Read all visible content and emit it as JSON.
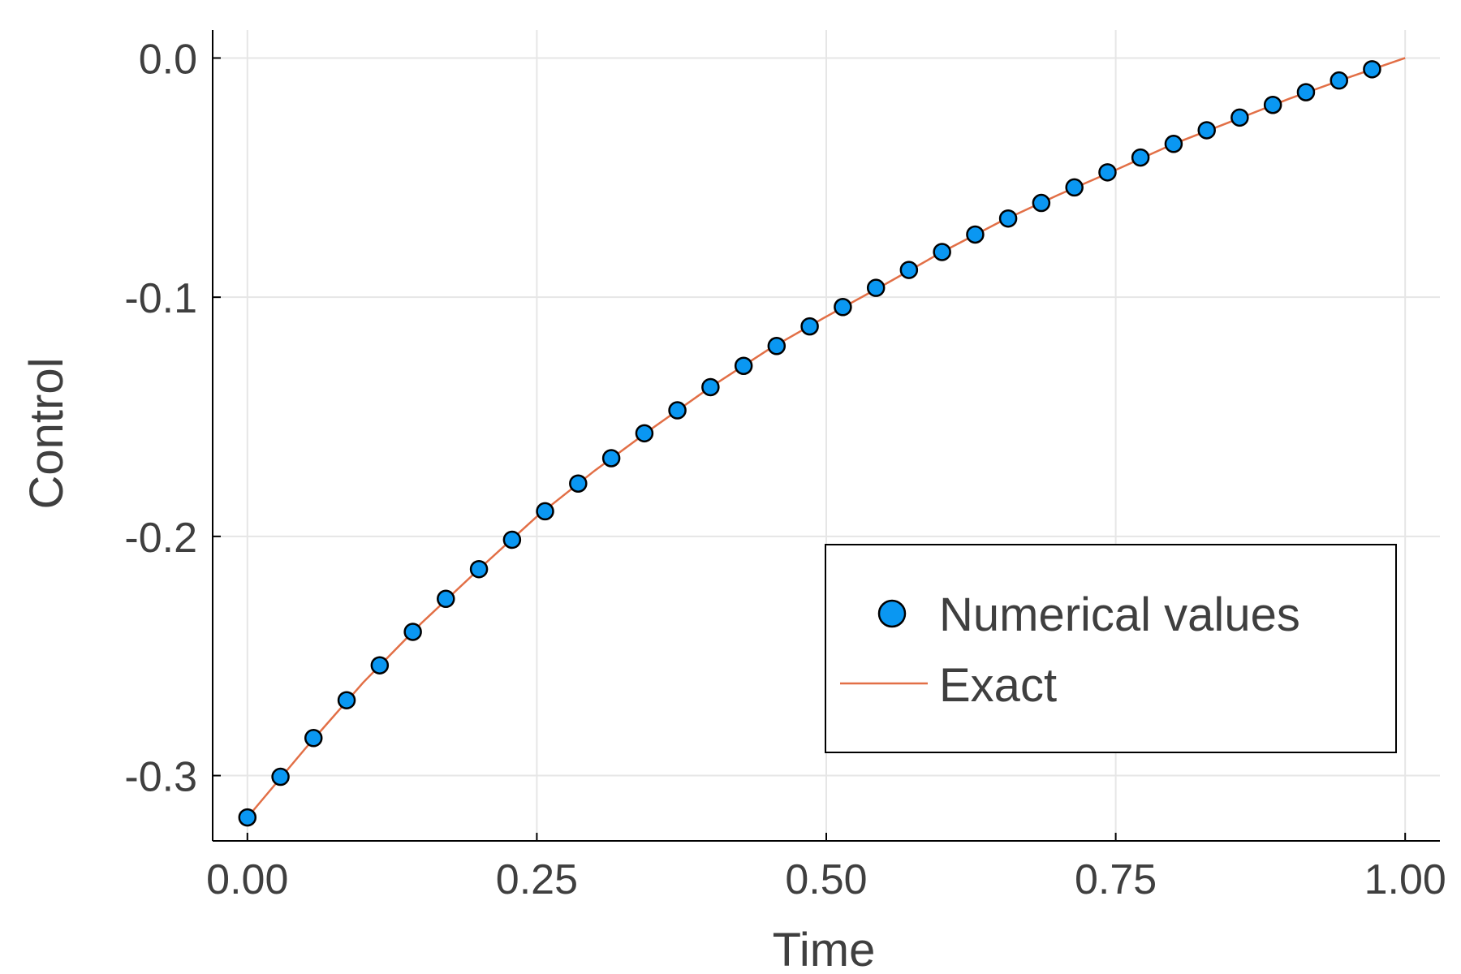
{
  "chart_data": {
    "type": "scatter",
    "xlabel": "Time",
    "ylabel": "Control",
    "xlim": [
      -0.03,
      1.03
    ],
    "ylim": [
      -0.3273,
      0.0117
    ],
    "x_ticks": [
      0.0,
      0.25,
      0.5,
      0.75,
      1.0
    ],
    "x_tick_labels": [
      "0.00",
      "0.25",
      "0.50",
      "0.75",
      "1.00"
    ],
    "y_ticks": [
      0.0,
      -0.1,
      -0.2,
      -0.3
    ],
    "y_tick_labels": [
      "0.0",
      "-0.1",
      "-0.2",
      "-0.3"
    ],
    "grid": true,
    "legend_position": "bottom-right",
    "series": [
      {
        "name": "Numerical values",
        "style": "markers",
        "color": "#0a97f2",
        "x": [
          0.0,
          0.0286,
          0.0571,
          0.0857,
          0.1143,
          0.1429,
          0.1714,
          0.2,
          0.2286,
          0.2571,
          0.2857,
          0.3143,
          0.3429,
          0.3714,
          0.4,
          0.4286,
          0.4571,
          0.4857,
          0.5143,
          0.5429,
          0.5714,
          0.6,
          0.6286,
          0.6571,
          0.6857,
          0.7143,
          0.7429,
          0.7714,
          0.8,
          0.8286,
          0.8571,
          0.8857,
          0.9143,
          0.9429,
          0.9714
        ],
        "y": [
          -0.3175,
          -0.3005,
          -0.2843,
          -0.2685,
          -0.2539,
          -0.2399,
          -0.2261,
          -0.2137,
          -0.2014,
          -0.1895,
          -0.1779,
          -0.1673,
          -0.1569,
          -0.1473,
          -0.1376,
          -0.1287,
          -0.1204,
          -0.1122,
          -0.1041,
          -0.0961,
          -0.0886,
          -0.0811,
          -0.0738,
          -0.0671,
          -0.0606,
          -0.0541,
          -0.0478,
          -0.0416,
          -0.0359,
          -0.0302,
          -0.0249,
          -0.0196,
          -0.0143,
          -0.0094,
          -0.0047
        ]
      },
      {
        "name": "Exact",
        "style": "line",
        "color": "#e26f46",
        "x": [
          0.0,
          0.05,
          0.1,
          0.15,
          0.2,
          0.25,
          0.3,
          0.35,
          0.4,
          0.45,
          0.5,
          0.55,
          0.6,
          0.65,
          0.7,
          0.75,
          0.8,
          0.85,
          0.9,
          0.95,
          1.0
        ],
        "y": [
          -0.3175,
          -0.2887,
          -0.2611,
          -0.2364,
          -0.2137,
          -0.1917,
          -0.1725,
          -0.1547,
          -0.1376,
          -0.1219,
          -0.1081,
          -0.0948,
          -0.0811,
          -0.0685,
          -0.0573,
          -0.0468,
          -0.0359,
          -0.0265,
          -0.017,
          -0.0083,
          0.0
        ]
      }
    ]
  }
}
